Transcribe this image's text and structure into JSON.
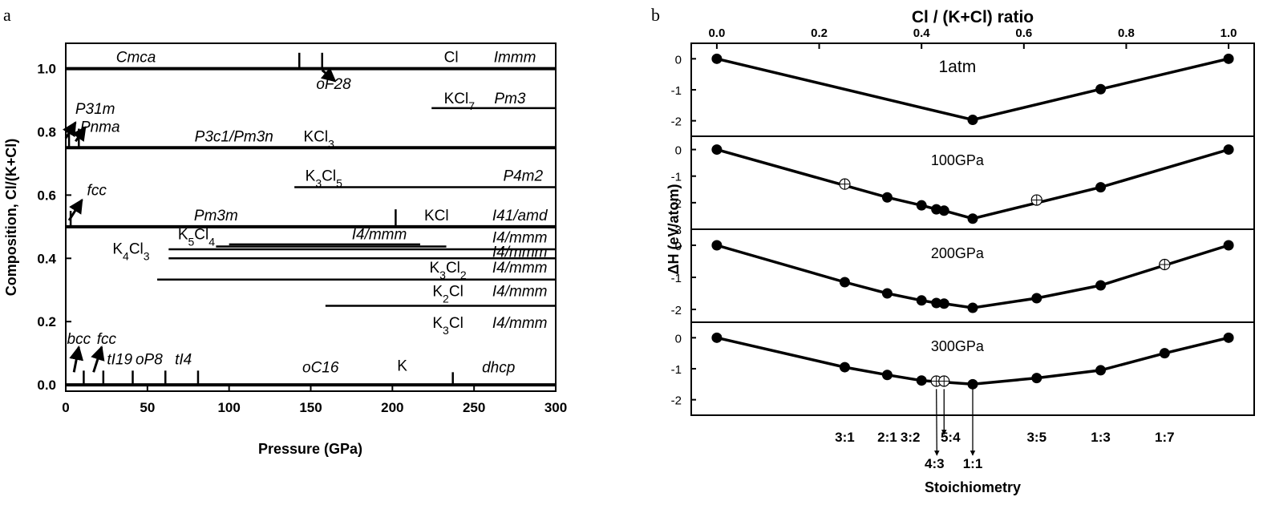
{
  "panel_labels": {
    "a": "a",
    "b": "b"
  },
  "chart_data": [
    {
      "type": "phase-diagram",
      "xlabel": "Pressure (GPa)",
      "ylabel": "Composition, Cl/(K+Cl)",
      "xlim": [
        0,
        300
      ],
      "ylim": [
        -0.02,
        1.08
      ],
      "xticks": [
        "0",
        "50",
        "100",
        "150",
        "200",
        "250",
        "300"
      ],
      "yticks": [
        "0.0",
        "0.2",
        "0.4",
        "0.6",
        "0.8",
        "1.0"
      ],
      "composition_lines": [
        {
          "y": 1.0,
          "x": [
            0,
            300
          ]
        },
        {
          "y": 0.875,
          "x": [
            224,
            300
          ]
        },
        {
          "y": 0.75,
          "x": [
            0,
            300
          ]
        },
        {
          "y": 0.625,
          "x": [
            140,
            300
          ]
        },
        {
          "y": 0.5,
          "x": [
            0,
            300
          ]
        },
        {
          "y": 0.444,
          "x": [
            100,
            217
          ]
        },
        {
          "y": 0.4375,
          "x": [
            92,
            233
          ]
        },
        {
          "y": 0.4286,
          "x": [
            63,
            300
          ]
        },
        {
          "y": 0.4,
          "x": [
            63,
            300
          ]
        },
        {
          "y": 0.333,
          "x": [
            56,
            300
          ]
        },
        {
          "y": 0.25,
          "x": [
            159,
            300
          ]
        },
        {
          "y": 0.0,
          "x": [
            0,
            300
          ]
        }
      ],
      "transitions": [
        {
          "y": 1.0,
          "x": 143,
          "height": 0.05
        },
        {
          "y": 1.0,
          "x": 157,
          "height": 0.05
        },
        {
          "y": 0.75,
          "x": 2,
          "height": 0.06
        },
        {
          "y": 0.75,
          "x": 8,
          "height": 0.06
        },
        {
          "y": 0.5,
          "x": 3,
          "height": 0.05
        },
        {
          "y": 0.5,
          "x": 202,
          "height": 0.055
        },
        {
          "y": 0.0,
          "x": 11,
          "height": 0.045
        },
        {
          "y": 0.0,
          "x": 23,
          "height": 0.045
        },
        {
          "y": 0.0,
          "x": 41,
          "height": 0.045
        },
        {
          "y": 0.0,
          "x": 61,
          "height": 0.045
        },
        {
          "y": 0.0,
          "x": 81,
          "height": 0.045
        },
        {
          "y": 0.0,
          "x": 237,
          "height": 0.04
        }
      ],
      "arrows": [
        {
          "from": [
            157,
            0.995
          ],
          "to": [
            165,
            0.96
          ]
        },
        {
          "from": [
            0,
            0.78
          ],
          "to": [
            6,
            0.83
          ]
        },
        {
          "from": [
            6,
            0.77
          ],
          "to": [
            12,
            0.815
          ]
        },
        {
          "from": [
            2,
            0.52
          ],
          "to": [
            10,
            0.585
          ]
        },
        {
          "from": [
            5,
            0.04
          ],
          "to": [
            8,
            0.12
          ]
        },
        {
          "from": [
            17,
            0.04
          ],
          "to": [
            22,
            0.12
          ]
        }
      ],
      "annotations": [
        {
          "text": "Cmca",
          "x": 43,
          "y": 1.02,
          "style": "italic"
        },
        {
          "text": "Cl",
          "x": 236,
          "y": 1.02,
          "style": "normal"
        },
        {
          "text": "Immm",
          "x": 275,
          "y": 1.02,
          "style": "italic"
        },
        {
          "text": "oF28",
          "x": 164,
          "y": 0.935,
          "style": "italic"
        },
        {
          "text": "KCl7",
          "x": 241,
          "y": 0.89,
          "style": "normal"
        },
        {
          "text": "Pm3",
          "x": 272,
          "y": 0.89,
          "style": "italic"
        },
        {
          "text": "P31m",
          "x": 18,
          "y": 0.857,
          "style": "italic"
        },
        {
          "text": "Pnma",
          "x": 21,
          "y": 0.8,
          "style": "italic"
        },
        {
          "text": "P3c1/Pm3n",
          "x": 103,
          "y": 0.77,
          "style": "italic"
        },
        {
          "text": "KCl3",
          "x": 155,
          "y": 0.77,
          "style": "normal"
        },
        {
          "text": "K3Cl5",
          "x": 158,
          "y": 0.645,
          "style": "normal"
        },
        {
          "text": "P4m2",
          "x": 280,
          "y": 0.645,
          "style": "italic"
        },
        {
          "text": "fcc",
          "x": 19,
          "y": 0.6,
          "style": "italic"
        },
        {
          "text": "Pm3m",
          "x": 92,
          "y": 0.52,
          "style": "italic"
        },
        {
          "text": "KCl",
          "x": 227,
          "y": 0.52,
          "style": "normal"
        },
        {
          "text": "I41/amd",
          "x": 278,
          "y": 0.52,
          "style": "italic"
        },
        {
          "text": "K5Cl4",
          "x": 80,
          "y": 0.46,
          "style": "normal"
        },
        {
          "text": "I4/mmm",
          "x": 192,
          "y": 0.46,
          "style": "italic"
        },
        {
          "text": "I4/mmm",
          "x": 278,
          "y": 0.45,
          "style": "italic"
        },
        {
          "text": "K4Cl3",
          "x": 40,
          "y": 0.415,
          "style": "normal"
        },
        {
          "text": "I4/mmm",
          "x": 278,
          "y": 0.405,
          "style": "italic"
        },
        {
          "text": "K3Cl2",
          "x": 234,
          "y": 0.355,
          "style": "normal"
        },
        {
          "text": "I4/mmm",
          "x": 278,
          "y": 0.355,
          "style": "italic"
        },
        {
          "text": "K2Cl",
          "x": 234,
          "y": 0.28,
          "style": "normal"
        },
        {
          "text": "I4/mmm",
          "x": 278,
          "y": 0.28,
          "style": "italic"
        },
        {
          "text": "K3Cl",
          "x": 234,
          "y": 0.18,
          "style": "normal"
        },
        {
          "text": "I4/mmm",
          "x": 278,
          "y": 0.18,
          "style": "italic"
        },
        {
          "text": "bcc",
          "x": 8,
          "y": 0.13,
          "style": "italic"
        },
        {
          "text": "fcc",
          "x": 25,
          "y": 0.13,
          "style": "italic"
        },
        {
          "text": "tI19",
          "x": 33,
          "y": 0.065,
          "style": "italic"
        },
        {
          "text": "oP8",
          "x": 51,
          "y": 0.065,
          "style": "italic"
        },
        {
          "text": "tI4",
          "x": 72,
          "y": 0.065,
          "style": "italic"
        },
        {
          "text": "oC16",
          "x": 156,
          "y": 0.04,
          "style": "italic"
        },
        {
          "text": "K",
          "x": 206,
          "y": 0.045,
          "style": "normal"
        },
        {
          "text": "dhcp",
          "x": 265,
          "y": 0.04,
          "style": "italic"
        }
      ]
    },
    {
      "type": "line",
      "title": "Cl / (K+Cl) ratio",
      "xlabel": "Stoichiometry",
      "ylabel": "ΔH (eV/atom)",
      "xlim": [
        -0.05,
        1.05
      ],
      "xticks": [
        "0.0",
        "0.2",
        "0.4",
        "0.6",
        "0.8",
        "1.0"
      ],
      "yticks": [
        "0",
        "-1",
        "-2"
      ],
      "stoichiometry_labels": [
        {
          "text": "3:1",
          "x": 0.25,
          "row": 0
        },
        {
          "text": "2:1",
          "x": 0.333,
          "row": 0
        },
        {
          "text": "3:2",
          "x": 0.4,
          "row": 0
        },
        {
          "text": "5:4",
          "x": 0.444,
          "row": 0
        },
        {
          "text": "4:3",
          "x": 0.43,
          "row": 1
        },
        {
          "text": "1:1",
          "x": 0.5,
          "row": 1
        },
        {
          "text": "3:5",
          "x": 0.625,
          "row": 0
        },
        {
          "text": "1:3",
          "x": 0.75,
          "row": 0
        },
        {
          "text": "1:7",
          "x": 0.875,
          "row": 0
        }
      ],
      "panels": [
        {
          "label": "1atm",
          "ylim": [
            -2.5,
            0.5
          ],
          "points": [
            {
              "x": 0.0,
              "y": 0.0,
              "stable": true
            },
            {
              "x": 0.5,
              "y": -1.97,
              "stable": true
            },
            {
              "x": 0.75,
              "y": -0.98,
              "stable": true
            },
            {
              "x": 1.0,
              "y": 0.0,
              "stable": true
            }
          ]
        },
        {
          "label": "100GPa",
          "ylim": [
            -3.0,
            0.5
          ],
          "points": [
            {
              "x": 0.0,
              "y": 0.0,
              "stable": true
            },
            {
              "x": 0.25,
              "y": -1.3,
              "stable": false
            },
            {
              "x": 0.333,
              "y": -1.8,
              "stable": true
            },
            {
              "x": 0.4,
              "y": -2.1,
              "stable": true
            },
            {
              "x": 0.429,
              "y": -2.25,
              "stable": true
            },
            {
              "x": 0.444,
              "y": -2.3,
              "stable": true
            },
            {
              "x": 0.5,
              "y": -2.6,
              "stable": true
            },
            {
              "x": 0.625,
              "y": -1.9,
              "stable": false
            },
            {
              "x": 0.75,
              "y": -1.42,
              "stable": true
            },
            {
              "x": 1.0,
              "y": 0.0,
              "stable": true
            }
          ]
        },
        {
          "label": "200GPa",
          "ylim": [
            -2.4,
            0.5
          ],
          "points": [
            {
              "x": 0.0,
              "y": 0.0,
              "stable": true
            },
            {
              "x": 0.25,
              "y": -1.15,
              "stable": true
            },
            {
              "x": 0.333,
              "y": -1.5,
              "stable": true
            },
            {
              "x": 0.4,
              "y": -1.72,
              "stable": true
            },
            {
              "x": 0.429,
              "y": -1.8,
              "stable": true
            },
            {
              "x": 0.444,
              "y": -1.82,
              "stable": true
            },
            {
              "x": 0.5,
              "y": -1.95,
              "stable": true
            },
            {
              "x": 0.625,
              "y": -1.65,
              "stable": true
            },
            {
              "x": 0.75,
              "y": -1.25,
              "stable": true
            },
            {
              "x": 0.875,
              "y": -0.6,
              "stable": false
            },
            {
              "x": 1.0,
              "y": 0.0,
              "stable": true
            }
          ]
        },
        {
          "label": "300GPa",
          "ylim": [
            -2.5,
            0.5
          ],
          "points": [
            {
              "x": 0.0,
              "y": 0.0,
              "stable": true
            },
            {
              "x": 0.25,
              "y": -0.95,
              "stable": true
            },
            {
              "x": 0.333,
              "y": -1.2,
              "stable": true
            },
            {
              "x": 0.4,
              "y": -1.38,
              "stable": true
            },
            {
              "x": 0.429,
              "y": -1.4,
              "stable": false
            },
            {
              "x": 0.444,
              "y": -1.4,
              "stable": false
            },
            {
              "x": 0.5,
              "y": -1.5,
              "stable": true
            },
            {
              "x": 0.625,
              "y": -1.3,
              "stable": true
            },
            {
              "x": 0.75,
              "y": -1.05,
              "stable": true
            },
            {
              "x": 0.875,
              "y": -0.5,
              "stable": true
            },
            {
              "x": 1.0,
              "y": 0.0,
              "stable": true
            }
          ]
        }
      ]
    }
  ]
}
